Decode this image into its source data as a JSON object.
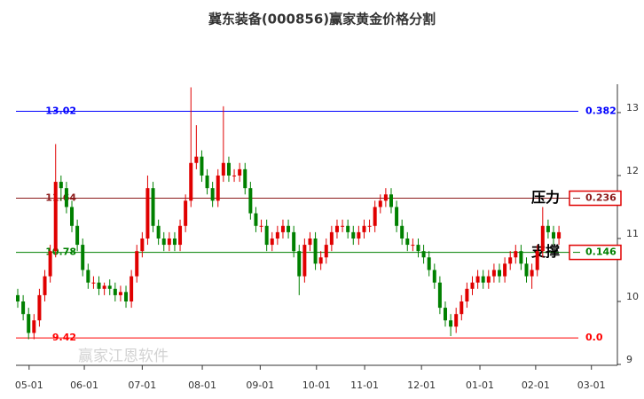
{
  "chart_data": {
    "type": "candlestick",
    "title": "冀东装备(000856)赢家黄金价格分割",
    "watermark": "赢家江恩软件",
    "up_color": "#e00000",
    "down_color": "#008000",
    "ylim": [
      9,
      13.45
    ],
    "yticks": [
      9,
      10,
      11,
      12,
      13
    ],
    "xlim": [
      -0.33,
      110.8
    ],
    "xticks": [
      {
        "value": 2.1,
        "label": "05-01"
      },
      {
        "value": 12.3,
        "label": "06-01"
      },
      {
        "value": 23,
        "label": "07-01"
      },
      {
        "value": 34.1,
        "label": "08-01"
      },
      {
        "value": 44.8,
        "label": "09-01"
      },
      {
        "value": 55.2,
        "label": "10-01"
      },
      {
        "value": 64.1,
        "label": "11-01"
      },
      {
        "value": 74.6,
        "label": "12-01"
      },
      {
        "value": 85.4,
        "label": "01-01"
      },
      {
        "value": 95.7,
        "label": "02-01"
      },
      {
        "value": 106,
        "label": "03-01"
      }
    ],
    "levels": [
      {
        "value": 13.02,
        "ratio": 0.382,
        "color": "#0000ff",
        "boxed": false
      },
      {
        "value": 11.64,
        "ratio": 0.236,
        "color": "#8b1a1a",
        "boxed": true,
        "tag": "压力"
      },
      {
        "value": 10.78,
        "ratio": 0.146,
        "color": "#008000",
        "boxed": true,
        "tag": "支撑"
      },
      {
        "value": 9.42,
        "ratio": {
          "value": 0,
          "label": "0.0"
        },
        "color": "#ff0000",
        "boxed": false
      }
    ],
    "open": [
      10.1,
      10.0,
      9.8,
      9.5,
      9.7,
      10.1,
      10.4,
      10.8,
      11.9,
      11.8,
      11.5,
      11.2,
      10.9,
      10.5,
      10.3,
      10.3,
      10.2,
      10.25,
      10.2,
      10.1,
      10.15,
      10.0,
      10.4,
      10.8,
      11.0,
      11.8,
      11.2,
      11.0,
      10.9,
      11.0,
      10.9,
      11.2,
      11.6,
      12.2,
      12.3,
      12.0,
      11.8,
      11.6,
      12.0,
      12.2,
      12.0,
      12.0,
      12.1,
      11.8,
      11.4,
      11.2,
      11.2,
      10.9,
      11.0,
      11.1,
      11.2,
      11.1,
      10.8,
      10.4,
      10.9,
      11.0,
      10.6,
      10.7,
      10.9,
      11.1,
      11.2,
      11.2,
      11.1,
      11.0,
      11.1,
      11.2,
      11.2,
      11.5,
      11.6,
      11.7,
      11.5,
      11.2,
      11.0,
      10.9,
      10.9,
      10.8,
      10.7,
      10.5,
      10.3,
      9.9,
      9.7,
      9.6,
      9.8,
      10.0,
      10.2,
      10.3,
      10.4,
      10.3,
      10.4,
      10.5,
      10.4,
      10.6,
      10.7,
      10.8,
      10.6,
      10.4,
      10.5,
      10.8,
      11.2,
      11.1,
      11.0
    ],
    "close": [
      10.0,
      9.8,
      9.5,
      9.7,
      10.1,
      10.4,
      10.8,
      11.9,
      11.8,
      11.5,
      11.2,
      10.9,
      10.5,
      10.3,
      10.3,
      10.2,
      10.25,
      10.2,
      10.1,
      10.15,
      10.0,
      10.4,
      10.8,
      11.0,
      11.8,
      11.2,
      11.0,
      10.9,
      11.0,
      10.9,
      11.2,
      11.6,
      12.2,
      12.3,
      12.0,
      11.8,
      11.6,
      12.0,
      12.2,
      12.0,
      12.0,
      12.1,
      11.8,
      11.4,
      11.2,
      11.2,
      10.9,
      11.0,
      11.1,
      11.2,
      11.1,
      10.8,
      10.4,
      10.9,
      11.0,
      10.6,
      10.7,
      10.9,
      11.1,
      11.2,
      11.2,
      11.1,
      11.0,
      11.1,
      11.2,
      11.2,
      11.5,
      11.6,
      11.7,
      11.5,
      11.2,
      11.0,
      10.9,
      10.9,
      10.8,
      10.7,
      10.5,
      10.3,
      9.9,
      9.7,
      9.6,
      9.8,
      10.0,
      10.2,
      10.3,
      10.4,
      10.3,
      10.4,
      10.5,
      10.4,
      10.6,
      10.7,
      10.8,
      10.6,
      10.4,
      10.5,
      10.8,
      11.2,
      11.1,
      11.0,
      11.1
    ],
    "high": [
      10.2,
      10.1,
      9.9,
      9.8,
      10.2,
      10.5,
      10.9,
      12.5,
      12.0,
      11.9,
      11.6,
      11.3,
      11.0,
      10.6,
      10.4,
      10.4,
      10.3,
      10.35,
      10.3,
      10.25,
      10.25,
      10.5,
      10.9,
      11.1,
      12.0,
      11.9,
      11.3,
      11.1,
      11.1,
      11.1,
      11.3,
      11.7,
      13.4,
      12.8,
      12.4,
      12.1,
      11.9,
      12.1,
      13.1,
      12.3,
      12.1,
      12.2,
      12.2,
      11.9,
      11.5,
      11.3,
      11.3,
      11.1,
      11.2,
      11.3,
      11.3,
      11.2,
      10.9,
      11.0,
      11.1,
      11.1,
      10.8,
      11.0,
      11.2,
      11.3,
      11.3,
      11.3,
      11.2,
      11.2,
      11.3,
      11.3,
      11.6,
      11.7,
      11.8,
      11.8,
      11.6,
      11.3,
      11.1,
      11.0,
      11.0,
      10.9,
      10.8,
      10.6,
      10.4,
      10.0,
      9.8,
      9.9,
      10.1,
      10.3,
      10.4,
      10.5,
      10.5,
      10.5,
      10.6,
      10.6,
      10.7,
      10.8,
      10.9,
      10.9,
      10.7,
      10.6,
      10.9,
      11.5,
      11.3,
      11.2,
      11.2
    ],
    "low": [
      9.9,
      9.7,
      9.4,
      9.4,
      9.6,
      10.0,
      10.3,
      10.7,
      11.6,
      11.4,
      11.1,
      10.8,
      10.4,
      10.2,
      10.2,
      10.1,
      10.1,
      10.1,
      10.0,
      10.0,
      9.9,
      9.9,
      10.3,
      10.7,
      10.9,
      11.1,
      10.9,
      10.8,
      10.8,
      10.8,
      10.8,
      11.1,
      11.5,
      12.1,
      11.9,
      11.7,
      11.5,
      11.5,
      11.9,
      11.9,
      11.9,
      11.9,
      11.7,
      11.3,
      11.1,
      11.1,
      10.8,
      10.8,
      10.9,
      11.0,
      11.0,
      10.7,
      10.1,
      10.3,
      10.8,
      10.5,
      10.5,
      10.6,
      10.8,
      11.0,
      11.1,
      11.0,
      10.9,
      10.9,
      11.0,
      11.1,
      11.1,
      11.4,
      11.5,
      11.4,
      11.1,
      10.9,
      10.8,
      10.8,
      10.7,
      10.6,
      10.4,
      10.2,
      9.8,
      9.6,
      9.45,
      9.5,
      9.7,
      9.9,
      10.1,
      10.2,
      10.2,
      10.2,
      10.3,
      10.3,
      10.3,
      10.5,
      10.6,
      10.5,
      10.3,
      10.2,
      10.4,
      10.7,
      11.0,
      10.9,
      10.9
    ]
  }
}
